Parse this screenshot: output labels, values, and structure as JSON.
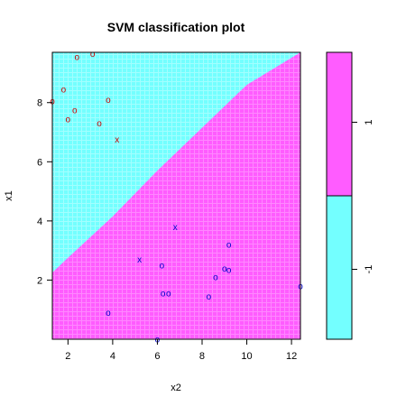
{
  "chart_data": {
    "type": "scatter",
    "title": "SVM classification plot",
    "xlabel": "x2",
    "ylabel": "x1",
    "xlim": [
      1.3,
      12.4
    ],
    "ylim": [
      0.0,
      9.7
    ],
    "x_ticks": [
      2,
      4,
      6,
      8,
      10,
      12
    ],
    "y_ticks": [
      2,
      4,
      6,
      8
    ],
    "grid": false,
    "background_regions": {
      "class_neg1_color": "#73ffff",
      "class_1_color": "#ff5cff",
      "boundary": [
        [
          1.3,
          2.25
        ],
        [
          2.0,
          2.75
        ],
        [
          4.0,
          4.15
        ],
        [
          6.0,
          5.7
        ],
        [
          8.0,
          7.15
        ],
        [
          10.0,
          8.6
        ],
        [
          12.4,
          9.7
        ]
      ]
    },
    "legend": {
      "type": "colorbar",
      "placement": "right",
      "labels": [
        "-1",
        "1"
      ],
      "colors": [
        "#73ffff",
        "#ff5cff"
      ]
    },
    "series": [
      {
        "color": "#cc0000",
        "points": [
          {
            "x": 1.3,
            "y": 8.05,
            "m": "o"
          },
          {
            "x": 2.4,
            "y": 9.55,
            "m": "o"
          },
          {
            "x": 3.1,
            "y": 9.65,
            "m": "o"
          },
          {
            "x": 1.8,
            "y": 8.45,
            "m": "o"
          },
          {
            "x": 3.8,
            "y": 8.1,
            "m": "o"
          },
          {
            "x": 2.3,
            "y": 7.75,
            "m": "o"
          },
          {
            "x": 2.0,
            "y": 7.45,
            "m": "o"
          },
          {
            "x": 3.4,
            "y": 7.3,
            "m": "o"
          },
          {
            "x": 4.2,
            "y": 6.75,
            "m": "x"
          }
        ]
      },
      {
        "color": "#0000cc",
        "points": [
          {
            "x": 6.8,
            "y": 3.8,
            "m": "x"
          },
          {
            "x": 5.2,
            "y": 2.7,
            "m": "x"
          },
          {
            "x": 9.2,
            "y": 3.2,
            "m": "o"
          },
          {
            "x": 6.2,
            "y": 2.5,
            "m": "o"
          },
          {
            "x": 9.0,
            "y": 2.4,
            "m": "o"
          },
          {
            "x": 9.2,
            "y": 2.35,
            "m": "o"
          },
          {
            "x": 8.6,
            "y": 2.1,
            "m": "o"
          },
          {
            "x": 12.4,
            "y": 1.8,
            "m": "o"
          },
          {
            "x": 6.25,
            "y": 1.55,
            "m": "o"
          },
          {
            "x": 6.5,
            "y": 1.55,
            "m": "o"
          },
          {
            "x": 8.3,
            "y": 1.45,
            "m": "o"
          },
          {
            "x": 3.8,
            "y": 0.9,
            "m": "o"
          },
          {
            "x": 6.0,
            "y": 0.0,
            "m": "o"
          }
        ]
      }
    ]
  }
}
